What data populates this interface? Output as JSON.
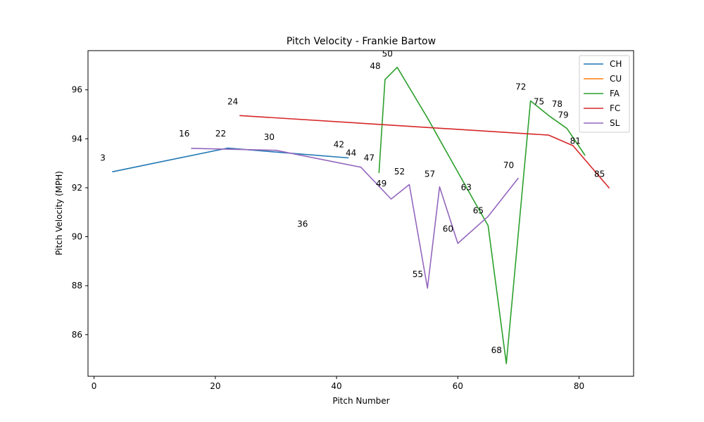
{
  "chart_data": {
    "type": "line",
    "title": "Pitch Velocity - Frankie Bartow",
    "xlabel": "Pitch Number",
    "ylabel": "Pitch Velocity (MPH)",
    "xlim": [
      -1,
      89
    ],
    "ylim": [
      84.3,
      97.6
    ],
    "xticks": [
      0,
      20,
      40,
      60,
      80
    ],
    "yticks": [
      86,
      88,
      90,
      92,
      94,
      96
    ],
    "legend_position": "top-right",
    "series": [
      {
        "name": "CH",
        "color": "#1f77b4",
        "x": [
          3,
          22,
          42
        ],
        "y": [
          92.65,
          93.62,
          93.22
        ]
      },
      {
        "name": "CU",
        "color": "#ff7f0e",
        "x": [],
        "y": []
      },
      {
        "name": "FA",
        "color": "#2ca02c",
        "x": [
          47,
          48,
          50,
          55,
          63,
          65,
          68,
          72,
          75,
          78,
          81
        ],
        "y": [
          92.6,
          96.42,
          96.92,
          94.85,
          91.32,
          90.46,
          84.82,
          95.55,
          94.95,
          94.42,
          93.32
        ]
      },
      {
        "name": "FC",
        "color": "#d62728",
        "x": [
          24,
          75,
          79,
          85
        ],
        "y": [
          94.95,
          94.15,
          93.72,
          91.98
        ]
      },
      {
        "name": "SL",
        "color": "#9467bd",
        "x": [
          16,
          30,
          44,
          49,
          52,
          55,
          57,
          60,
          65,
          70
        ],
        "y": [
          93.61,
          93.53,
          92.84,
          91.54,
          92.13,
          87.9,
          92.04,
          89.73,
          90.83,
          92.4
        ]
      }
    ],
    "annotations": [
      {
        "text": "3",
        "x": 1,
        "y": 93.1
      },
      {
        "text": "16",
        "x": 14,
        "y": 94.1
      },
      {
        "text": "22",
        "x": 20,
        "y": 94.1
      },
      {
        "text": "24",
        "x": 22,
        "y": 95.4
      },
      {
        "text": "30",
        "x": 28,
        "y": 93.95
      },
      {
        "text": "36",
        "x": 33.5,
        "y": 90.4
      },
      {
        "text": "42",
        "x": 39.5,
        "y": 93.65
      },
      {
        "text": "44",
        "x": 41.5,
        "y": 93.3
      },
      {
        "text": "47",
        "x": 44.5,
        "y": 93.1
      },
      {
        "text": "48",
        "x": 45.5,
        "y": 96.85
      },
      {
        "text": "49",
        "x": 46.5,
        "y": 92.05
      },
      {
        "text": "50",
        "x": 47.5,
        "y": 97.35
      },
      {
        "text": "52",
        "x": 49.5,
        "y": 92.55
      },
      {
        "text": "55",
        "x": 52.5,
        "y": 88.35
      },
      {
        "text": "57",
        "x": 54.5,
        "y": 92.45
      },
      {
        "text": "60",
        "x": 57.5,
        "y": 90.2
      },
      {
        "text": "63",
        "x": 60.5,
        "y": 91.9
      },
      {
        "text": "65",
        "x": 62.5,
        "y": 90.95
      },
      {
        "text": "68",
        "x": 65.5,
        "y": 85.25
      },
      {
        "text": "70",
        "x": 67.5,
        "y": 92.8
      },
      {
        "text": "72",
        "x": 69.5,
        "y": 96.0
      },
      {
        "text": "75",
        "x": 72.5,
        "y": 95.4
      },
      {
        "text": "78",
        "x": 75.5,
        "y": 95.3
      },
      {
        "text": "79",
        "x": 76.5,
        "y": 94.85
      },
      {
        "text": "81",
        "x": 78.5,
        "y": 93.8
      },
      {
        "text": "85",
        "x": 82.5,
        "y": 92.45
      }
    ]
  }
}
